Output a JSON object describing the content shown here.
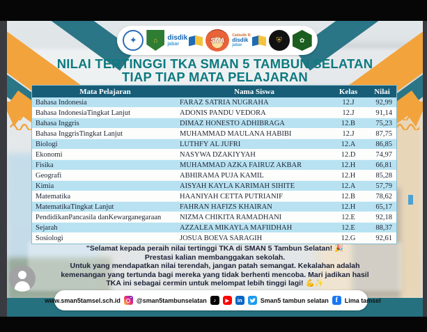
{
  "post": {
    "logos": {
      "disdik_label": "disdik",
      "disdik_sub": "jabar",
      "cadisdik_label": "Cadisdik III",
      "sma_label": "SMA"
    },
    "title_line1": "NILAI TERTINGGI TKA SMAN 5 TAMBUN SELATAN",
    "title_line2": "TIAP TIAP MATA PELAJARAN",
    "table": {
      "columns": [
        "Mata Pelajaran",
        "Nama Siswa",
        "Kelas",
        "Nilai"
      ],
      "rows": [
        {
          "subject": "Bahasa Indonesia",
          "name": "FARAZ SATRIA NUGRAHA",
          "kelas": "12.J",
          "nilai": "92,99"
        },
        {
          "subject": "Bahasa IndonesiaTingkat Lanjut",
          "name": "ADONIS PANDU VEDORA",
          "kelas": "12.J",
          "nilai": "91,14"
        },
        {
          "subject": "Bahasa Inggris",
          "name": "DIMAZ HONESTO ADHIBRAGA",
          "kelas": "12.B",
          "nilai": "75,23"
        },
        {
          "subject": "Bahasa InggrisTingkat Lanjut",
          "name": "MUHAMMAD MAULANA HABIBI",
          "kelas": "12.J",
          "nilai": "87,75"
        },
        {
          "subject": "Biologi",
          "name": "LUTHFY AL JUFRI",
          "kelas": "12.A",
          "nilai": "86,85"
        },
        {
          "subject": "Ekonomi",
          "name": "NASYWA DZAKIYYAH",
          "kelas": "12.D",
          "nilai": "74,97"
        },
        {
          "subject": "Fisika",
          "name": "MUHAMMAD AZKA FAIRUZ AKBAR",
          "kelas": "12.H",
          "nilai": "66,81"
        },
        {
          "subject": "Geografi",
          "name": "ABHIRAMA PUJA KAMIL",
          "kelas": "12.H",
          "nilai": "85,28"
        },
        {
          "subject": "Kimia",
          "name": "AISYAH KAYLA KARIMAH SIHITE",
          "kelas": "12.A",
          "nilai": "57,79"
        },
        {
          "subject": "Matematika",
          "name": "HAANIYAH CETTA PUTRIANIF",
          "kelas": "12.B",
          "nilai": "78,62"
        },
        {
          "subject": "MatematikaTingkat Lanjut",
          "name": "FAHRAN HAFIZS KHAIRAN",
          "kelas": "12.H",
          "nilai": "65,17"
        },
        {
          "subject": "PendidikanPancasila danKewarganegaraan",
          "name": "NIZMA CHIKITA RAMADHANI",
          "kelas": "12.E",
          "nilai": "92,18"
        },
        {
          "subject": "Sejarah",
          "name": "AZZALEA MIKAYLA MAFIIDHAH",
          "kelas": "12.E",
          "nilai": "88,37"
        },
        {
          "subject": "Sosiologi",
          "name": "JOSUA BOEVA SARAGIH",
          "kelas": "12.G",
          "nilai": "92,61"
        }
      ]
    },
    "message": {
      "lines": [
        "\"Selamat kepada peraih nilai tertinggi TKA di SMAN 5 Tambun Selatan! 🎉",
        "Prestasi kalian membanggakan sekolah.",
        "Untuk yang mendapatkan nilai terendah, jangan patah semangat. Kekalahan adalah",
        "kemenangan yang tertunda bagi mereka yang tidak berhenti mencoba. Mari jadikan hasil",
        "TKA ini sebagai cermin untuk melompat lebih tinggi lagi! 💪✨"
      ]
    },
    "footer": {
      "website": "www.sman5tamsel.sch.id",
      "instagram_handle": "@sman5tambunselatan",
      "channel_name": "Sman5 tambun selatan",
      "facebook_name": "Lima tamsel"
    },
    "colors": {
      "accent_orange": "#f2a33c",
      "accent_teal": "#2a7586",
      "title": "#0d7a80",
      "table_header_bg": "#175d78",
      "table_row_alt": "#b8e2f1",
      "bottom_band": "#26717f"
    }
  }
}
